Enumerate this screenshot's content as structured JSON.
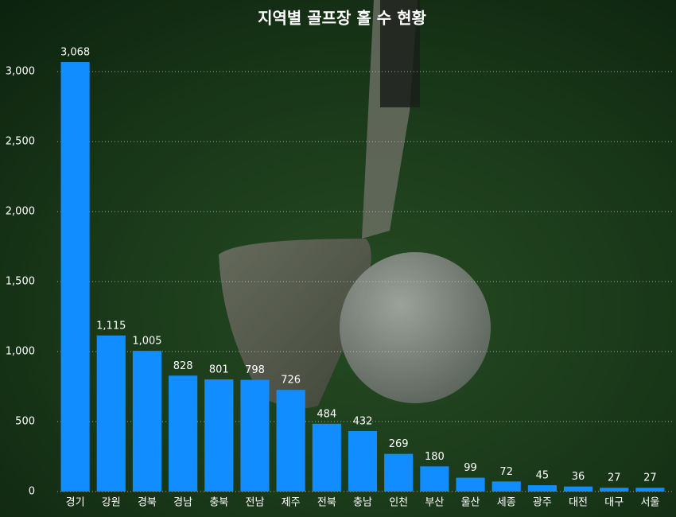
{
  "chart_data": {
    "type": "bar",
    "title": "지역별 골프장 홀 수 현황",
    "categories": [
      "경기",
      "강원",
      "경북",
      "경남",
      "충북",
      "전남",
      "제주",
      "전북",
      "충남",
      "인천",
      "부산",
      "울산",
      "세종",
      "광주",
      "대전",
      "대구",
      "서울"
    ],
    "values": [
      3068,
      1115,
      1005,
      828,
      801,
      798,
      726,
      484,
      432,
      269,
      180,
      99,
      72,
      45,
      36,
      27,
      27
    ],
    "value_labels": [
      "3,068",
      "1,115",
      "1,005",
      "828",
      "801",
      "798",
      "726",
      "484",
      "432",
      "269",
      "180",
      "99",
      "72",
      "45",
      "36",
      "27",
      "27"
    ],
    "color": "#118dff",
    "ylim": [
      0,
      3100
    ],
    "yticks": [
      0,
      500,
      {
        "value": 1000,
        "label": "1,000"
      },
      {
        "value": 1500,
        "label": "1,500"
      },
      {
        "value": 2000,
        "label": "2,000"
      },
      {
        "value": 2500,
        "label": "2,500"
      },
      {
        "value": 3000,
        "label": "3,000"
      }
    ],
    "grid": true
  }
}
